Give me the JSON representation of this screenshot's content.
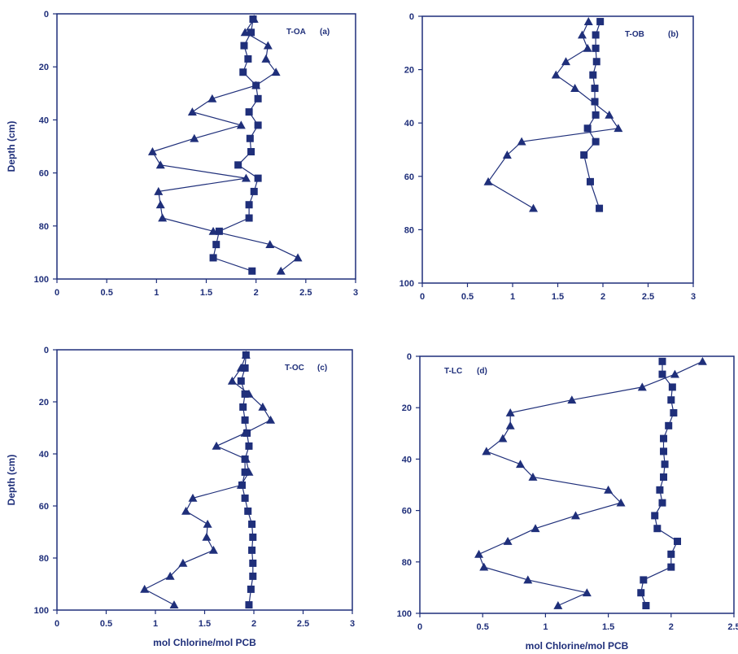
{
  "colors": {
    "ink": "#1f2f7a",
    "background": "#ffffff"
  },
  "chart_data": [
    {
      "type": "scatter",
      "panel_label": "T-OA",
      "panel_letter": "(a)",
      "ylabel": "Depth (cm)",
      "xlabel": "",
      "xlim": [
        0,
        3
      ],
      "ylim": [
        0,
        100
      ],
      "y_inverted": true,
      "x_ticks": [
        "0",
        "0.5",
        "1",
        "1.5",
        "2",
        "2.5",
        "3"
      ],
      "y_ticks": [
        "0",
        "20",
        "40",
        "60",
        "80",
        "100"
      ],
      "series": [
        {
          "marker": "square",
          "points": [
            [
              1.97,
              2
            ],
            [
              1.95,
              7
            ],
            [
              1.88,
              12
            ],
            [
              1.92,
              17
            ],
            [
              1.87,
              22
            ],
            [
              2.0,
              27
            ],
            [
              2.02,
              32
            ],
            [
              1.93,
              37
            ],
            [
              2.02,
              42
            ],
            [
              1.94,
              47
            ],
            [
              1.95,
              52
            ],
            [
              1.82,
              57
            ],
            [
              2.02,
              62
            ],
            [
              1.98,
              67
            ],
            [
              1.93,
              72
            ],
            [
              1.93,
              77
            ],
            [
              1.63,
              82
            ],
            [
              1.6,
              87
            ],
            [
              1.57,
              92
            ],
            [
              1.96,
              97
            ]
          ]
        },
        {
          "marker": "triangle",
          "points": [
            [
              1.98,
              2
            ],
            [
              1.89,
              7
            ],
            [
              2.12,
              12
            ],
            [
              2.1,
              17
            ],
            [
              2.2,
              22
            ],
            [
              2.0,
              27
            ],
            [
              1.56,
              32
            ],
            [
              1.36,
              37
            ],
            [
              1.85,
              42
            ],
            [
              1.38,
              47
            ],
            [
              0.96,
              52
            ],
            [
              1.04,
              57
            ],
            [
              1.9,
              62
            ],
            [
              1.02,
              67
            ],
            [
              1.04,
              72
            ],
            [
              1.06,
              77
            ],
            [
              1.57,
              82
            ],
            [
              2.14,
              87
            ],
            [
              2.42,
              92
            ],
            [
              2.25,
              97
            ]
          ]
        }
      ]
    },
    {
      "type": "scatter",
      "panel_label": "T-OB",
      "panel_letter": "(b)",
      "ylabel": "",
      "xlabel": "",
      "xlim": [
        0,
        3
      ],
      "ylim": [
        0,
        100
      ],
      "y_inverted": true,
      "x_ticks": [
        "0",
        "0.5",
        "1",
        "1.5",
        "2",
        "2.5",
        "3"
      ],
      "y_ticks": [
        "0",
        "20",
        "40",
        "60",
        "80",
        "100"
      ],
      "series": [
        {
          "marker": "square",
          "points": [
            [
              1.97,
              2
            ],
            [
              1.92,
              7
            ],
            [
              1.92,
              12
            ],
            [
              1.93,
              17
            ],
            [
              1.89,
              22
            ],
            [
              1.91,
              27
            ],
            [
              1.91,
              32
            ],
            [
              1.92,
              37
            ],
            [
              1.83,
              42
            ],
            [
              1.92,
              47
            ],
            [
              1.79,
              52
            ],
            [
              1.86,
              62
            ],
            [
              1.96,
              72
            ]
          ]
        },
        {
          "marker": "triangle",
          "points": [
            [
              1.84,
              2
            ],
            [
              1.77,
              7
            ],
            [
              1.83,
              12
            ],
            [
              1.59,
              17
            ],
            [
              1.48,
              22
            ],
            [
              1.69,
              27
            ],
            [
              2.07,
              37
            ],
            [
              2.17,
              42
            ],
            [
              1.1,
              47
            ],
            [
              0.94,
              52
            ],
            [
              0.73,
              62
            ],
            [
              1.23,
              72
            ]
          ]
        }
      ]
    },
    {
      "type": "scatter",
      "panel_label": "T-OC",
      "panel_letter": "(c)",
      "ylabel": "Depth (cm)",
      "xlabel": "mol Chlorine/mol PCB",
      "xlim": [
        0,
        3
      ],
      "ylim": [
        0,
        100
      ],
      "y_inverted": true,
      "x_ticks": [
        "0",
        "0.5",
        "1",
        "1.5",
        "2",
        "2.5",
        "3"
      ],
      "y_ticks": [
        "0",
        "20",
        "40",
        "60",
        "80",
        "100"
      ],
      "series": [
        {
          "marker": "square",
          "points": [
            [
              1.92,
              2
            ],
            [
              1.91,
              7
            ],
            [
              1.87,
              12
            ],
            [
              1.91,
              17
            ],
            [
              1.89,
              22
            ],
            [
              1.91,
              27
            ],
            [
              1.93,
              32
            ],
            [
              1.95,
              37
            ],
            [
              1.91,
              42
            ],
            [
              1.91,
              47
            ],
            [
              1.88,
              52
            ],
            [
              1.91,
              57
            ],
            [
              1.94,
              62
            ],
            [
              1.98,
              67
            ],
            [
              1.99,
              72
            ],
            [
              1.98,
              77
            ],
            [
              1.99,
              82
            ],
            [
              1.99,
              87
            ],
            [
              1.97,
              92
            ],
            [
              1.95,
              98
            ]
          ]
        },
        {
          "marker": "triangle",
          "points": [
            [
              1.92,
              2
            ],
            [
              1.87,
              7
            ],
            [
              1.78,
              12
            ],
            [
              1.95,
              17
            ],
            [
              2.09,
              22
            ],
            [
              2.17,
              27
            ],
            [
              1.91,
              32
            ],
            [
              1.62,
              37
            ],
            [
              1.92,
              42
            ],
            [
              1.95,
              47
            ],
            [
              1.87,
              52
            ],
            [
              1.38,
              57
            ],
            [
              1.31,
              62
            ],
            [
              1.53,
              67
            ],
            [
              1.52,
              72
            ],
            [
              1.59,
              77
            ],
            [
              1.28,
              82
            ],
            [
              1.15,
              87
            ],
            [
              0.89,
              92
            ],
            [
              1.19,
              98
            ]
          ]
        }
      ]
    },
    {
      "type": "scatter",
      "panel_label": "T-LC",
      "panel_letter": "(d)",
      "ylabel": "",
      "xlabel": "mol Chlorine/mol PCB",
      "xlim": [
        0,
        2.5
      ],
      "ylim": [
        0,
        100
      ],
      "y_inverted": true,
      "x_ticks": [
        "0",
        "0.5",
        "1",
        "1.5",
        "2",
        "2.5"
      ],
      "y_ticks": [
        "0",
        "20",
        "40",
        "60",
        "80",
        "100"
      ],
      "series": [
        {
          "marker": "square",
          "points": [
            [
              1.93,
              2
            ],
            [
              1.93,
              7
            ],
            [
              2.01,
              12
            ],
            [
              2.0,
              17
            ],
            [
              2.02,
              22
            ],
            [
              1.98,
              27
            ],
            [
              1.94,
              32
            ],
            [
              1.94,
              37
            ],
            [
              1.95,
              42
            ],
            [
              1.94,
              47
            ],
            [
              1.91,
              52
            ],
            [
              1.93,
              57
            ],
            [
              1.87,
              62
            ],
            [
              1.89,
              67
            ],
            [
              2.05,
              72
            ],
            [
              2.0,
              77
            ],
            [
              2.0,
              82
            ],
            [
              1.78,
              87
            ],
            [
              1.76,
              92
            ],
            [
              1.8,
              97
            ]
          ]
        },
        {
          "marker": "triangle",
          "points": [
            [
              2.25,
              2
            ],
            [
              2.03,
              7
            ],
            [
              1.77,
              12
            ],
            [
              1.21,
              17
            ],
            [
              0.72,
              22
            ],
            [
              0.72,
              27
            ],
            [
              0.66,
              32
            ],
            [
              0.53,
              37
            ],
            [
              0.8,
              42
            ],
            [
              0.9,
              47
            ],
            [
              1.5,
              52
            ],
            [
              1.6,
              57
            ],
            [
              1.24,
              62
            ],
            [
              0.92,
              67
            ],
            [
              0.7,
              72
            ],
            [
              0.47,
              77
            ],
            [
              0.51,
              82
            ],
            [
              0.86,
              87
            ],
            [
              1.33,
              92
            ],
            [
              1.1,
              97
            ]
          ]
        }
      ]
    }
  ]
}
